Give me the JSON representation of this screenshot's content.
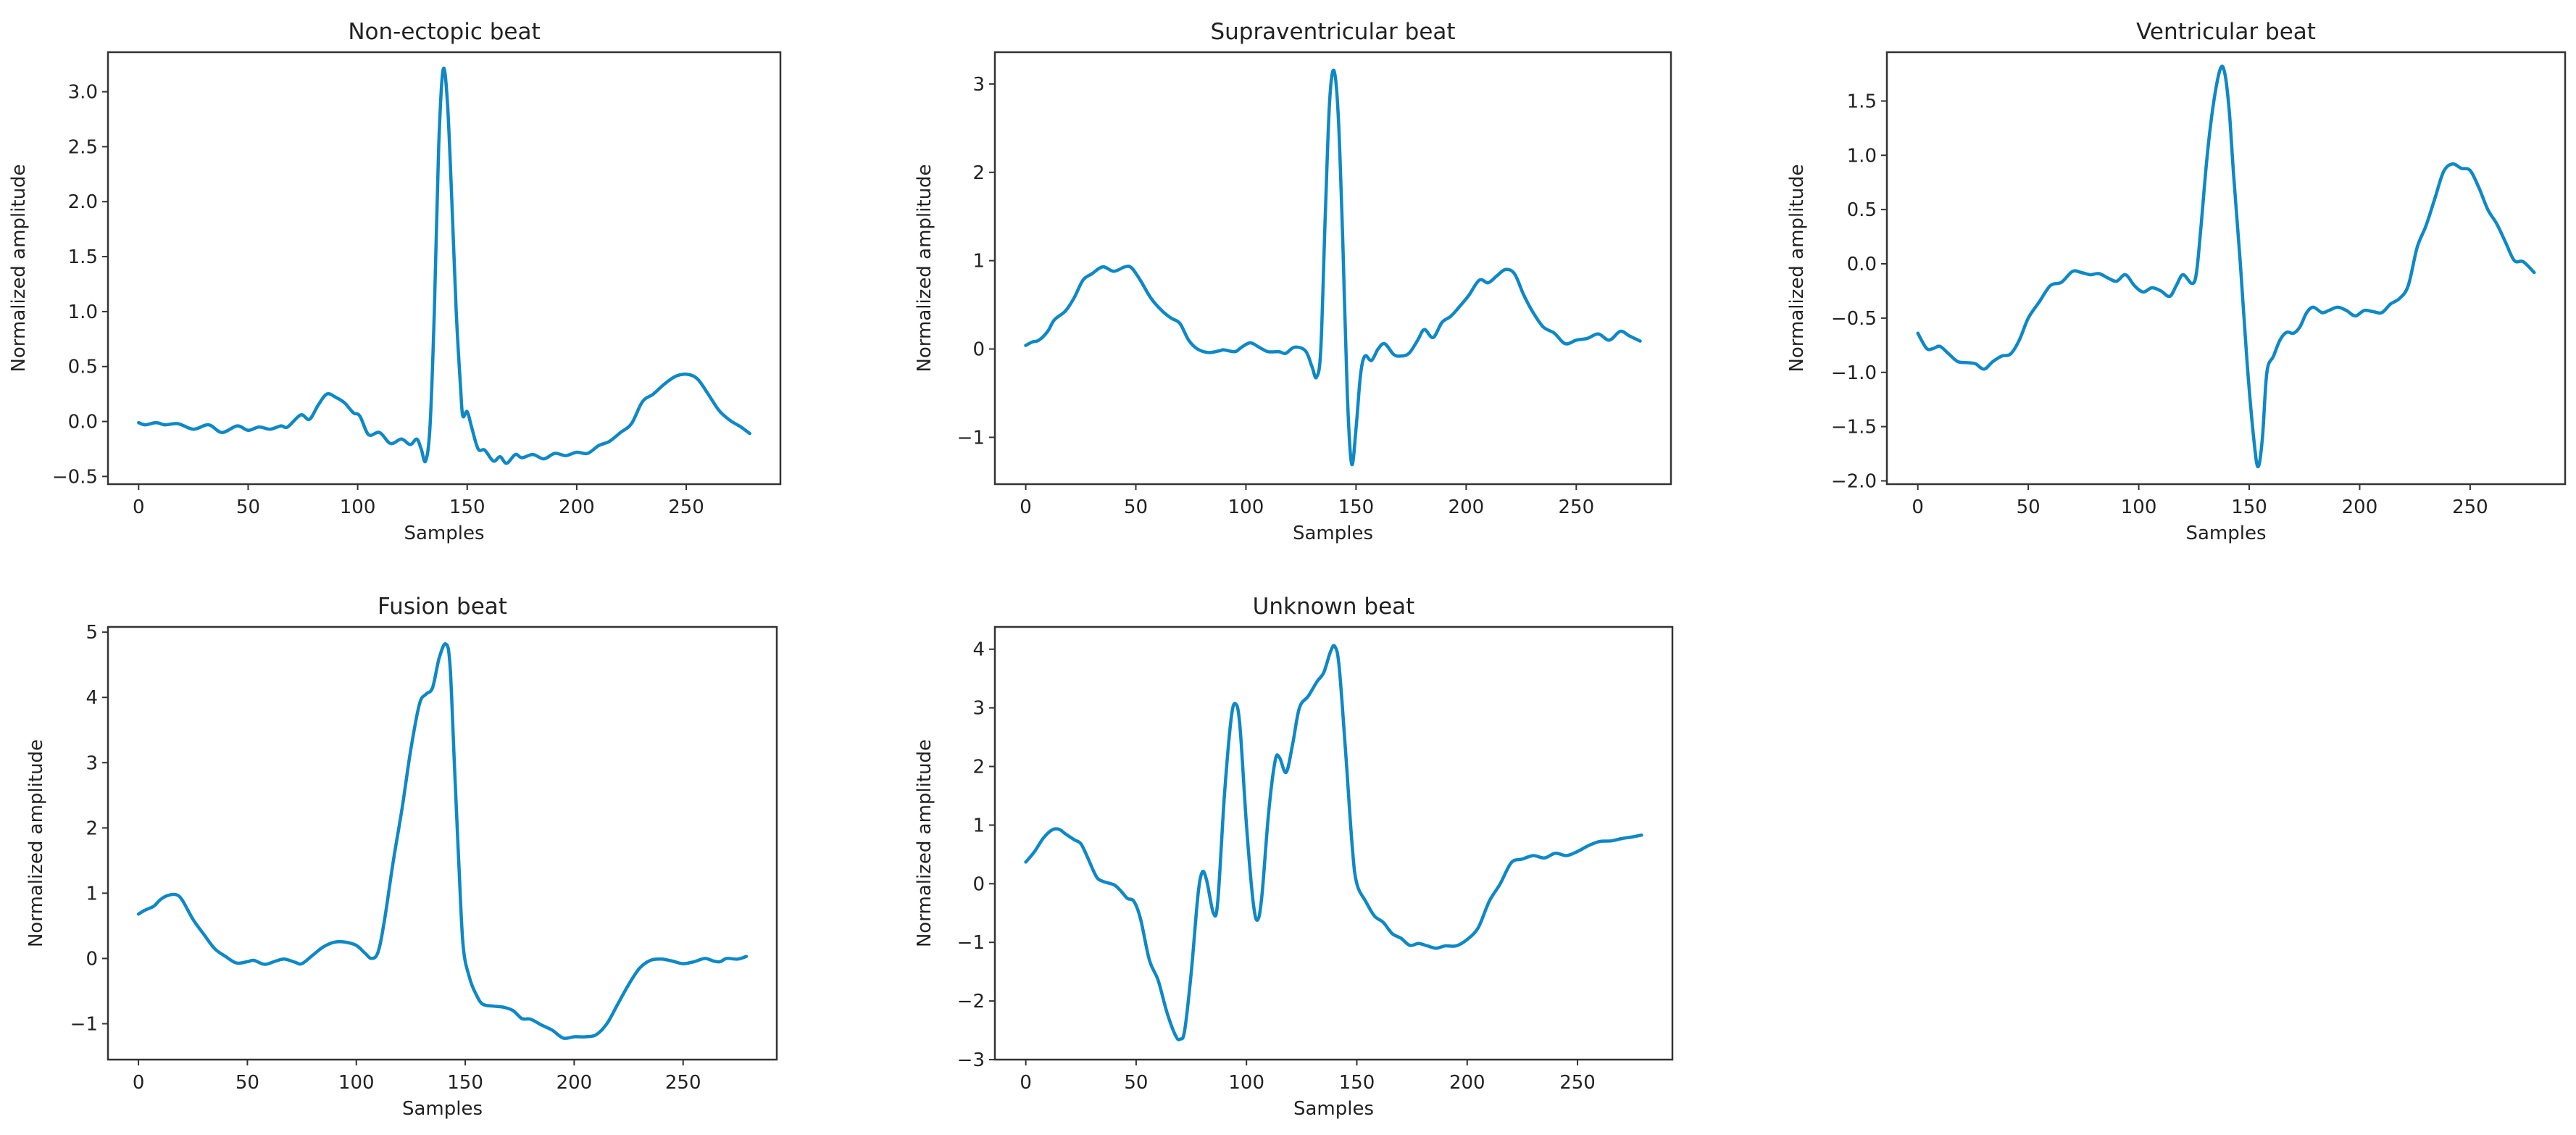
{
  "chart_data": [
    {
      "type": "line",
      "title": "Non-ectopic beat",
      "xlabel": "Samples",
      "ylabel": "Normalized amplitude",
      "xlim": [
        -14,
        293
      ],
      "ylim": [
        -0.57,
        3.36
      ],
      "xticks": [
        0,
        50,
        100,
        150,
        200,
        250
      ],
      "yticks": [
        -0.5,
        0.0,
        0.5,
        1.0,
        1.5,
        2.0,
        2.5,
        3.0
      ],
      "ytick_labels": [
        "−0.5",
        "0.0",
        "0.5",
        "1.0",
        "1.5",
        "2.0",
        "2.5",
        "3.0"
      ],
      "grid": false,
      "color": "#0e88c6",
      "x": [
        0,
        3,
        8,
        12,
        18,
        25,
        32,
        38,
        45,
        50,
        55,
        60,
        65,
        68,
        74,
        78,
        82,
        86,
        90,
        94,
        98,
        101,
        105,
        110,
        115,
        120,
        124,
        127,
        129,
        131,
        133,
        135,
        137,
        139,
        141,
        143,
        145,
        147,
        148,
        150,
        152,
        155,
        158,
        162,
        165,
        168,
        172,
        175,
        180,
        185,
        190,
        195,
        200,
        205,
        210,
        215,
        220,
        225,
        230,
        235,
        240,
        245,
        250,
        255,
        260,
        265,
        270,
        275,
        279
      ],
      "y": [
        -0.01,
        -0.03,
        -0.01,
        -0.03,
        -0.02,
        -0.07,
        -0.03,
        -0.1,
        -0.04,
        -0.08,
        -0.05,
        -0.07,
        -0.04,
        -0.05,
        0.06,
        0.02,
        0.15,
        0.25,
        0.22,
        0.17,
        0.08,
        0.05,
        -0.12,
        -0.1,
        -0.2,
        -0.16,
        -0.21,
        -0.16,
        -0.25,
        -0.36,
        -0.05,
        1.0,
        2.5,
        3.2,
        2.9,
        2.0,
        1.0,
        0.3,
        0.05,
        0.09,
        -0.05,
        -0.25,
        -0.26,
        -0.36,
        -0.32,
        -0.38,
        -0.3,
        -0.33,
        -0.3,
        -0.34,
        -0.29,
        -0.31,
        -0.28,
        -0.29,
        -0.22,
        -0.18,
        -0.1,
        -0.02,
        0.18,
        0.25,
        0.34,
        0.41,
        0.43,
        0.39,
        0.25,
        0.1,
        0.01,
        -0.05,
        -0.11
      ]
    },
    {
      "type": "line",
      "title": "Supraventricular beat",
      "xlabel": "Samples",
      "ylabel": "Normalized amplitude",
      "xlim": [
        -14,
        293
      ],
      "ylim": [
        -1.53,
        3.36
      ],
      "xticks": [
        0,
        50,
        100,
        150,
        200,
        250
      ],
      "yticks": [
        -1,
        0,
        1,
        2,
        3
      ],
      "ytick_labels": [
        "−1",
        "0",
        "1",
        "2",
        "3"
      ],
      "grid": false,
      "color": "#0e88c6",
      "x": [
        0,
        3,
        6,
        10,
        13,
        18,
        22,
        26,
        30,
        35,
        40,
        45,
        48,
        52,
        57,
        62,
        66,
        70,
        74,
        78,
        83,
        88,
        90,
        95,
        98,
        102,
        106,
        110,
        115,
        118,
        122,
        127,
        130,
        132,
        134,
        136,
        138,
        140,
        142,
        144,
        146,
        148,
        150,
        152,
        154,
        157,
        160,
        163,
        167,
        170,
        174,
        178,
        181,
        185,
        189,
        193,
        197,
        201,
        206,
        210,
        214,
        218,
        222,
        226,
        230,
        235,
        240,
        245,
        250,
        255,
        260,
        265,
        270,
        274,
        279
      ],
      "y": [
        0.04,
        0.08,
        0.1,
        0.2,
        0.33,
        0.43,
        0.58,
        0.78,
        0.85,
        0.93,
        0.88,
        0.93,
        0.92,
        0.78,
        0.57,
        0.43,
        0.35,
        0.29,
        0.1,
        0.0,
        -0.04,
        -0.02,
        -0.01,
        -0.03,
        0.02,
        0.07,
        0.02,
        -0.03,
        -0.03,
        -0.05,
        0.02,
        -0.02,
        -0.2,
        -0.32,
        0.0,
        1.5,
        2.8,
        3.15,
        2.6,
        1.2,
        -0.5,
        -1.3,
        -0.9,
        -0.3,
        -0.08,
        -0.13,
        0.0,
        0.06,
        -0.06,
        -0.08,
        -0.05,
        0.1,
        0.22,
        0.13,
        0.3,
        0.37,
        0.48,
        0.6,
        0.78,
        0.75,
        0.83,
        0.9,
        0.85,
        0.62,
        0.43,
        0.25,
        0.18,
        0.06,
        0.1,
        0.12,
        0.17,
        0.1,
        0.2,
        0.15,
        0.09
      ]
    },
    {
      "type": "line",
      "title": "Ventricular beat",
      "xlabel": "Samples",
      "ylabel": "Normalized amplitude",
      "xlim": [
        -14,
        293
      ],
      "ylim": [
        -2.03,
        1.95
      ],
      "xticks": [
        0,
        50,
        100,
        150,
        200,
        250
      ],
      "yticks": [
        -2.0,
        -1.5,
        -1.0,
        -0.5,
        0.0,
        0.5,
        1.0,
        1.5
      ],
      "ytick_labels": [
        "−2.0",
        "−1.5",
        "−1.0",
        "−0.5",
        "0.0",
        "0.5",
        "1.0",
        "1.5"
      ],
      "grid": false,
      "color": "#0e88c6",
      "x": [
        0,
        4,
        7,
        10,
        14,
        18,
        22,
        26,
        30,
        34,
        38,
        42,
        46,
        50,
        55,
        60,
        65,
        70,
        74,
        78,
        82,
        86,
        90,
        94,
        98,
        102,
        106,
        110,
        114,
        117,
        120,
        124,
        126,
        128,
        131,
        134,
        137,
        139,
        141,
        143,
        146,
        149,
        152,
        154,
        156,
        158,
        161,
        164,
        167,
        170,
        173,
        176,
        179,
        183,
        186,
        190,
        194,
        198,
        202,
        206,
        210,
        214,
        218,
        222,
        226,
        230,
        234,
        238,
        242,
        246,
        250,
        254,
        258,
        262,
        266,
        270,
        274,
        279
      ],
      "y": [
        -0.64,
        -0.78,
        -0.78,
        -0.76,
        -0.83,
        -0.9,
        -0.91,
        -0.92,
        -0.97,
        -0.9,
        -0.85,
        -0.83,
        -0.7,
        -0.5,
        -0.35,
        -0.2,
        -0.17,
        -0.07,
        -0.08,
        -0.1,
        -0.09,
        -0.13,
        -0.16,
        -0.1,
        -0.2,
        -0.26,
        -0.22,
        -0.25,
        -0.3,
        -0.2,
        -0.1,
        -0.18,
        -0.1,
        0.3,
        1.0,
        1.5,
        1.8,
        1.75,
        1.4,
        0.8,
        0.0,
        -0.9,
        -1.6,
        -1.87,
        -1.6,
        -1.0,
        -0.85,
        -0.7,
        -0.63,
        -0.64,
        -0.58,
        -0.45,
        -0.4,
        -0.45,
        -0.43,
        -0.4,
        -0.43,
        -0.48,
        -0.43,
        -0.44,
        -0.45,
        -0.37,
        -0.32,
        -0.2,
        0.15,
        0.35,
        0.6,
        0.85,
        0.92,
        0.88,
        0.86,
        0.7,
        0.5,
        0.37,
        0.2,
        0.03,
        0.02,
        -0.08
      ]
    },
    {
      "type": "line",
      "title": "Fusion beat",
      "xlabel": "Samples",
      "ylabel": "Normalized amplitude",
      "xlim": [
        -14,
        293
      ],
      "ylim": [
        -1.55,
        5.08
      ],
      "xticks": [
        0,
        50,
        100,
        150,
        200,
        250
      ],
      "yticks": [
        -1,
        0,
        1,
        2,
        3,
        4,
        5
      ],
      "ytick_labels": [
        "−1",
        "0",
        "1",
        "2",
        "3",
        "4",
        "5"
      ],
      "grid": false,
      "color": "#0e88c6",
      "x": [
        0,
        3,
        7,
        10,
        13,
        17,
        20,
        25,
        30,
        35,
        40,
        45,
        50,
        53,
        58,
        63,
        67,
        72,
        75,
        80,
        85,
        90,
        95,
        100,
        104,
        107,
        110,
        113,
        117,
        121,
        125,
        129,
        132,
        135,
        138,
        141,
        143,
        145,
        147,
        149,
        152,
        155,
        158,
        163,
        168,
        172,
        176,
        180,
        185,
        190,
        195,
        200,
        205,
        210,
        215,
        220,
        225,
        230,
        235,
        240,
        245,
        250,
        255,
        260,
        264,
        267,
        270,
        275,
        279
      ],
      "y": [
        0.68,
        0.74,
        0.8,
        0.9,
        0.96,
        0.98,
        0.9,
        0.6,
        0.37,
        0.15,
        0.03,
        -0.07,
        -0.05,
        -0.03,
        -0.09,
        -0.04,
        -0.01,
        -0.06,
        -0.08,
        0.05,
        0.18,
        0.25,
        0.25,
        0.2,
        0.08,
        0.0,
        0.1,
        0.6,
        1.5,
        2.3,
        3.2,
        3.9,
        4.05,
        4.15,
        4.6,
        4.82,
        4.5,
        3.0,
        1.5,
        0.2,
        -0.3,
        -0.55,
        -0.7,
        -0.73,
        -0.75,
        -0.8,
        -0.92,
        -0.93,
        -1.02,
        -1.1,
        -1.22,
        -1.2,
        -1.2,
        -1.17,
        -1.0,
        -0.7,
        -0.4,
        -0.15,
        -0.03,
        -0.01,
        -0.04,
        -0.08,
        -0.05,
        0.0,
        -0.04,
        -0.05,
        0.0,
        -0.01,
        0.03
      ]
    },
    {
      "type": "line",
      "title": "Unknown beat",
      "xlabel": "Samples",
      "ylabel": "Normalized amplitude",
      "xlim": [
        -14,
        293
      ],
      "ylim": [
        -3.0,
        4.38
      ],
      "xticks": [
        0,
        50,
        100,
        150,
        200,
        250
      ],
      "yticks": [
        -3,
        -2,
        -1,
        0,
        1,
        2,
        3,
        4
      ],
      "ytick_labels": [
        "−3",
        "−2",
        "−1",
        "0",
        "1",
        "2",
        "3",
        "4"
      ],
      "grid": false,
      "color": "#0e88c6",
      "x": [
        0,
        4,
        8,
        12,
        15,
        18,
        22,
        25,
        28,
        32,
        35,
        40,
        43,
        46,
        49,
        52,
        56,
        60,
        64,
        68,
        70,
        72,
        75,
        78,
        80,
        82,
        85,
        87,
        90,
        93,
        95,
        97,
        100,
        103,
        105,
        107,
        110,
        113,
        115,
        118,
        121,
        124,
        128,
        132,
        135,
        138,
        140,
        142,
        145,
        148,
        150,
        154,
        158,
        162,
        166,
        170,
        174,
        178,
        182,
        186,
        190,
        195,
        200,
        205,
        210,
        215,
        220,
        225,
        230,
        235,
        240,
        245,
        250,
        255,
        260,
        265,
        270,
        275,
        279
      ],
      "y": [
        0.37,
        0.55,
        0.78,
        0.92,
        0.93,
        0.85,
        0.75,
        0.68,
        0.45,
        0.12,
        0.04,
        -0.02,
        -0.12,
        -0.25,
        -0.3,
        -0.6,
        -1.3,
        -1.65,
        -2.2,
        -2.6,
        -2.65,
        -2.5,
        -1.5,
        -0.2,
        0.2,
        0.05,
        -0.5,
        -0.3,
        1.5,
        2.8,
        3.07,
        2.7,
        1.0,
        -0.3,
        -0.62,
        -0.2,
        1.2,
        2.1,
        2.15,
        1.9,
        2.4,
        3.0,
        3.2,
        3.45,
        3.6,
        3.95,
        4.05,
        3.7,
        2.2,
        0.6,
        0.0,
        -0.3,
        -0.55,
        -0.66,
        -0.85,
        -0.93,
        -1.05,
        -1.02,
        -1.06,
        -1.1,
        -1.06,
        -1.06,
        -0.95,
        -0.75,
        -0.3,
        0.0,
        0.36,
        0.42,
        0.48,
        0.44,
        0.52,
        0.48,
        0.55,
        0.65,
        0.72,
        0.73,
        0.77,
        0.8,
        0.83
      ]
    }
  ]
}
